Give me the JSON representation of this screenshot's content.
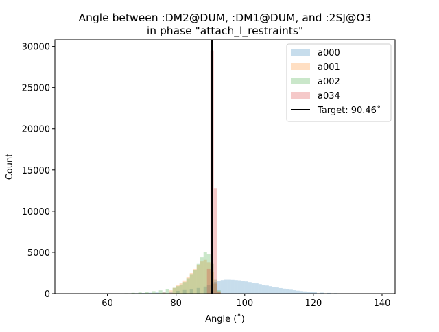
{
  "chart_data": {
    "type": "bar",
    "title": "Angle between :DM2@DUM, :DM1@DUM, and :2SJ@O3",
    "subtitle": "in phase \"attach_l_restraints\"",
    "xlabel": "Angle (˚)",
    "ylabel": "Count",
    "xlim": [
      44.7,
      143.8
    ],
    "ylim": [
      0,
      30800
    ],
    "xticks": [
      60,
      80,
      100,
      120,
      140
    ],
    "yticks": [
      0,
      5000,
      10000,
      15000,
      20000,
      25000,
      30000
    ],
    "grid": false,
    "legend_position": "top-right",
    "series": [
      {
        "name": "a000",
        "color": "#1f77b4",
        "bins": [
          [
            60,
            10
          ],
          [
            62,
            20
          ],
          [
            64,
            30
          ],
          [
            66,
            40
          ],
          [
            68,
            60
          ],
          [
            70,
            80
          ],
          [
            72,
            110
          ],
          [
            74,
            150
          ],
          [
            76,
            200
          ],
          [
            78,
            260
          ],
          [
            80,
            340
          ],
          [
            82,
            430
          ],
          [
            84,
            540
          ],
          [
            86,
            680
          ],
          [
            88,
            850
          ],
          [
            89,
            1000
          ],
          [
            90,
            1200
          ],
          [
            91,
            1400
          ],
          [
            92,
            1550
          ],
          [
            93,
            1650
          ],
          [
            94,
            1700
          ],
          [
            95,
            1700
          ],
          [
            96,
            1680
          ],
          [
            97,
            1650
          ],
          [
            98,
            1620
          ],
          [
            99,
            1550
          ],
          [
            100,
            1480
          ],
          [
            101,
            1400
          ],
          [
            102,
            1320
          ],
          [
            103,
            1240
          ],
          [
            104,
            1150
          ],
          [
            105,
            1070
          ],
          [
            106,
            980
          ],
          [
            107,
            900
          ],
          [
            108,
            820
          ],
          [
            109,
            740
          ],
          [
            110,
            670
          ],
          [
            111,
            600
          ],
          [
            112,
            530
          ],
          [
            113,
            470
          ],
          [
            114,
            410
          ],
          [
            115,
            360
          ],
          [
            116,
            310
          ],
          [
            117,
            270
          ],
          [
            118,
            230
          ],
          [
            119,
            190
          ],
          [
            120,
            160
          ],
          [
            122,
            120
          ],
          [
            124,
            90
          ],
          [
            126,
            60
          ],
          [
            128,
            40
          ],
          [
            130,
            30
          ],
          [
            132,
            20
          ],
          [
            134,
            10
          ],
          [
            136,
            10
          ],
          [
            138,
            5
          ]
        ]
      },
      {
        "name": "a001",
        "color": "#ff7f0e",
        "bins": [
          [
            74,
            50
          ],
          [
            76,
            150
          ],
          [
            78,
            400
          ],
          [
            79,
            700
          ],
          [
            80,
            1000
          ],
          [
            81,
            1300
          ],
          [
            82,
            1600
          ],
          [
            83,
            2000
          ],
          [
            84,
            2500
          ],
          [
            85,
            3000
          ],
          [
            86,
            3500
          ],
          [
            87,
            3900
          ],
          [
            88,
            4100
          ],
          [
            89,
            3800
          ],
          [
            90,
            2600
          ],
          [
            91,
            1200
          ],
          [
            92,
            300
          ]
        ]
      },
      {
        "name": "a002",
        "color": "#2ca02c",
        "bins": [
          [
            65,
            50
          ],
          [
            67,
            100
          ],
          [
            69,
            150
          ],
          [
            71,
            200
          ],
          [
            73,
            300
          ],
          [
            75,
            400
          ],
          [
            77,
            550
          ],
          [
            79,
            700
          ],
          [
            80,
            900
          ],
          [
            81,
            1100
          ],
          [
            82,
            1400
          ],
          [
            83,
            1800
          ],
          [
            84,
            2300
          ],
          [
            85,
            2900
          ],
          [
            86,
            3600
          ],
          [
            87,
            4400
          ],
          [
            88,
            5000
          ],
          [
            89,
            4800
          ],
          [
            90,
            3600
          ],
          [
            91,
            1700
          ],
          [
            92,
            400
          ]
        ]
      },
      {
        "name": "a034",
        "color": "#d62728",
        "bins": [
          [
            89,
            3000
          ],
          [
            90,
            29500
          ],
          [
            91,
            12800
          ],
          [
            92,
            200
          ]
        ]
      }
    ],
    "target": {
      "label": "Target: 90.46˚",
      "value": 90.46,
      "color": "#000000"
    }
  }
}
